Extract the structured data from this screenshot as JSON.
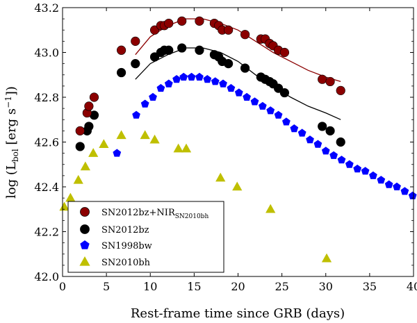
{
  "chart_data": {
    "type": "scatter",
    "title": "",
    "xlabel": "Rest-frame time since GRB (days)",
    "ylabel_main": "log (L",
    "ylabel_sub": "bol",
    "ylabel_unit_pre": " [erg s",
    "ylabel_unit_sup": "−1",
    "ylabel_unit_post": "])",
    "xlim": [
      0,
      40
    ],
    "ylim": [
      42.0,
      43.2
    ],
    "xticks": [
      0,
      5,
      10,
      15,
      20,
      25,
      30,
      35,
      40
    ],
    "yticks": [
      42.0,
      42.2,
      42.4,
      42.6,
      42.8,
      43.0,
      43.2
    ],
    "xtick_labels": [
      "0",
      "5",
      "10",
      "15",
      "20",
      "25",
      "30",
      "35",
      "40"
    ],
    "ytick_labels": [
      "42.0",
      "42.2",
      "42.4",
      "42.6",
      "42.8",
      "43.0",
      "43.2"
    ],
    "legend_position": "lower-left",
    "series": [
      {
        "name": "SN2012bz+NIR",
        "name_sub": "SN2010bh",
        "marker": "circle",
        "color": "#8b0000",
        "x": [
          2.0,
          2.8,
          3.0,
          3.6,
          6.7,
          8.3,
          10.5,
          11.2,
          11.6,
          12.1,
          13.6,
          15.6,
          17.3,
          17.8,
          18.2,
          18.9,
          20.8,
          22.6,
          23.1,
          23.6,
          24.0,
          24.6,
          25.3,
          29.6,
          30.5,
          31.7
        ],
        "y": [
          42.65,
          42.73,
          42.76,
          42.8,
          43.01,
          43.05,
          43.1,
          43.12,
          43.12,
          43.13,
          43.14,
          43.14,
          43.13,
          43.12,
          43.1,
          43.1,
          43.08,
          43.06,
          43.06,
          43.04,
          43.03,
          43.01,
          43.0,
          42.88,
          42.87,
          42.83
        ]
      },
      {
        "name": "SN2012bz",
        "name_sub": "",
        "marker": "circle",
        "color": "#000000",
        "x": [
          2.0,
          2.8,
          3.0,
          3.6,
          6.7,
          8.3,
          10.5,
          11.2,
          11.6,
          12.1,
          13.6,
          15.6,
          17.3,
          17.8,
          18.2,
          18.9,
          20.8,
          22.6,
          23.1,
          23.6,
          24.0,
          24.6,
          25.3,
          29.6,
          30.5,
          31.7
        ],
        "y": [
          42.58,
          42.65,
          42.67,
          42.72,
          42.91,
          42.95,
          42.98,
          43.0,
          43.01,
          43.01,
          43.02,
          43.01,
          42.99,
          42.98,
          42.96,
          42.95,
          42.93,
          42.89,
          42.88,
          42.87,
          42.86,
          42.84,
          42.82,
          42.67,
          42.65,
          42.6
        ]
      },
      {
        "name": "SN1998bw",
        "name_sub": "",
        "marker": "pentagon",
        "color": "#0000ff",
        "x": [
          6.2,
          8.4,
          9.4,
          10.3,
          11.2,
          12.1,
          13.0,
          13.8,
          14.7,
          15.6,
          16.5,
          17.4,
          18.3,
          19.2,
          20.1,
          21.0,
          21.9,
          22.8,
          23.7,
          24.6,
          25.5,
          26.4,
          27.3,
          28.2,
          29.1,
          30.0,
          30.9,
          31.8,
          32.7,
          33.6,
          34.5,
          35.4,
          36.3,
          37.2,
          38.1,
          39.0,
          39.9
        ],
        "y": [
          42.55,
          42.72,
          42.77,
          42.8,
          42.84,
          42.86,
          42.88,
          42.89,
          42.89,
          42.89,
          42.88,
          42.87,
          42.86,
          42.84,
          42.82,
          42.8,
          42.78,
          42.76,
          42.74,
          42.72,
          42.69,
          42.66,
          42.64,
          42.61,
          42.59,
          42.56,
          42.54,
          42.52,
          42.5,
          42.48,
          42.47,
          42.45,
          42.43,
          42.41,
          42.4,
          42.38,
          42.36
        ]
      },
      {
        "name": "SN2010bh",
        "name_sub": "",
        "marker": "triangle",
        "color": "#bfbf00",
        "x": [
          0.2,
          0.9,
          1.8,
          2.6,
          3.5,
          4.7,
          6.7,
          9.4,
          10.5,
          13.2,
          14.1,
          18.0,
          19.9,
          23.7,
          30.1
        ],
        "y": [
          42.31,
          42.35,
          42.43,
          42.49,
          42.55,
          42.59,
          42.63,
          42.63,
          42.61,
          42.57,
          42.57,
          42.44,
          42.4,
          42.3,
          42.08
        ]
      }
    ],
    "fits": [
      {
        "name": "SN2012bz+NIR fit",
        "color": "#8b0000",
        "x": [
          8.3,
          10,
          12,
          14,
          16,
          18,
          20,
          22,
          24,
          26,
          28,
          30,
          31.7
        ],
        "y": [
          42.99,
          43.07,
          43.12,
          43.15,
          43.15,
          43.13,
          43.1,
          43.05,
          43.0,
          42.96,
          42.92,
          42.89,
          42.87
        ]
      },
      {
        "name": "SN2012bz fit",
        "color": "#000000",
        "x": [
          8.3,
          10,
          12,
          14,
          16,
          18,
          20,
          22,
          24,
          26,
          28,
          30,
          31.7
        ],
        "y": [
          42.88,
          42.95,
          42.99,
          43.02,
          43.02,
          43.0,
          42.96,
          42.9,
          42.85,
          42.8,
          42.76,
          42.73,
          42.7
        ]
      }
    ]
  }
}
